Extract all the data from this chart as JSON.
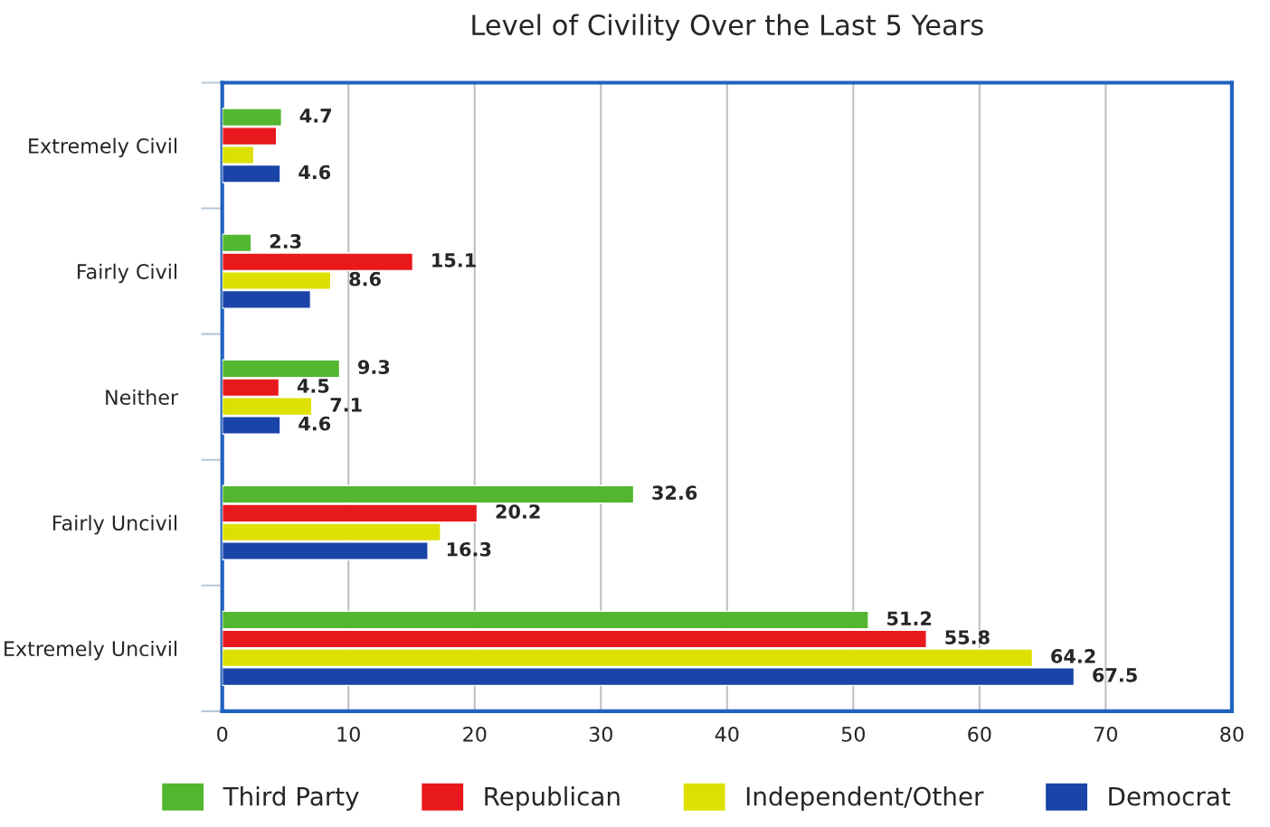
{
  "chart_data": {
    "type": "bar",
    "orientation": "horizontal",
    "title": "Level of Civility Over the Last 5 Years",
    "categories": [
      "Extremely Civil",
      "Fairly Civil",
      "Neither",
      "Fairly Uncivil",
      "Extremely Uncivil"
    ],
    "series": [
      {
        "name": "Third Party",
        "color": "#52b62f",
        "values": [
          4.7,
          2.3,
          9.3,
          32.6,
          51.2
        ],
        "value_labels": [
          "4.7",
          "2.3",
          "9.3",
          "32.6",
          "51.2"
        ]
      },
      {
        "name": "Republican",
        "color": "#e8191c",
        "values": [
          4.3,
          15.1,
          4.5,
          20.2,
          55.8
        ],
        "value_labels": [
          null,
          "15.1",
          "4.5",
          "20.2",
          "55.8"
        ]
      },
      {
        "name": "Independent/Other",
        "color": "#dde000",
        "values": [
          2.5,
          8.6,
          7.1,
          17.3,
          64.2
        ],
        "value_labels": [
          null,
          "8.6",
          "7.1",
          null,
          "64.2"
        ]
      },
      {
        "name": "Democrat",
        "color": "#1a44a8",
        "values": [
          4.6,
          7.0,
          4.6,
          16.3,
          67.5
        ],
        "value_labels": [
          "4.6",
          null,
          "4.6",
          "16.3",
          "67.5"
        ]
      }
    ],
    "xlim": [
      0,
      80
    ],
    "xticks": [
      0,
      10,
      20,
      30,
      40,
      50,
      60,
      70,
      80
    ],
    "grid": "x",
    "legend": "bottom"
  }
}
